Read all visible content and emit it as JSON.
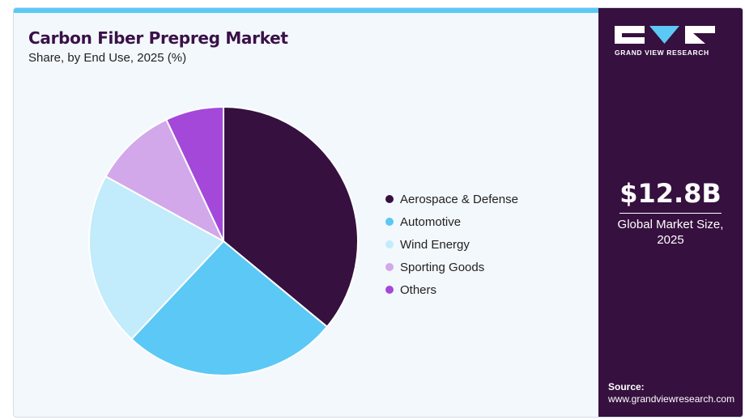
{
  "title": "Carbon Fiber Prepreg Market",
  "subtitle": "Share, by End Use, 2025 (%)",
  "chart_data": {
    "type": "pie",
    "title": "Carbon Fiber Prepreg Market",
    "subtitle": "Share, by End Use, 2025 (%)",
    "legend_position": "right",
    "slices": [
      {
        "label": "Aerospace & Defense",
        "value": 36,
        "color": "#36103f"
      },
      {
        "label": "Automotive",
        "value": 26,
        "color": "#5bc8f5"
      },
      {
        "label": "Wind Energy",
        "value": 21,
        "color": "#c2ebfb"
      },
      {
        "label": "Sporting Goods",
        "value": 10,
        "color": "#d2a8ea"
      },
      {
        "label": "Others",
        "value": 7,
        "color": "#a448d9"
      }
    ]
  },
  "side_panel": {
    "brand": "GRAND VIEW RESEARCH",
    "stat_value": "$12.8B",
    "stat_label_line1": "Global Market Size,",
    "stat_label_line2": "2025",
    "source_label": "Source:",
    "source_url": "www.grandviewresearch.com"
  }
}
